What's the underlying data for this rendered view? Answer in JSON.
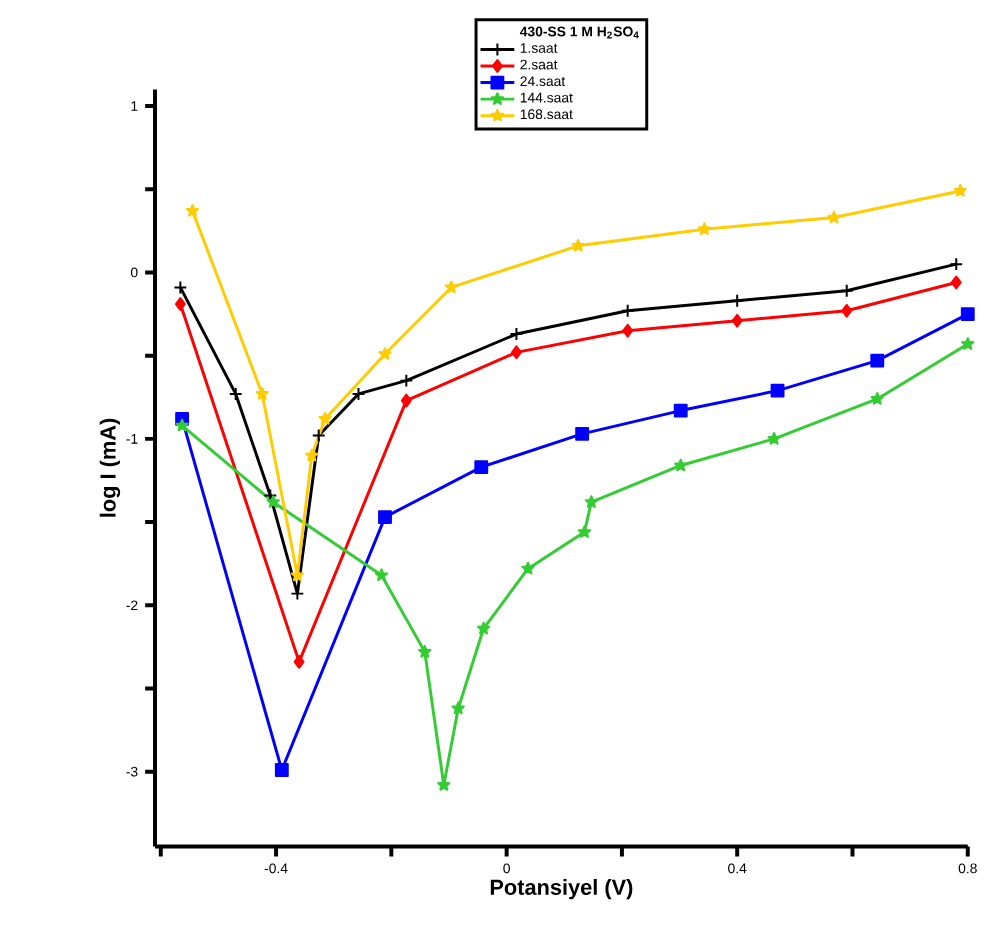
{
  "chart_data": {
    "type": "line",
    "xlabel": "Potansiyel (V)",
    "ylabel": "log I (mA)",
    "legend_title": "430-SS 1 M H$_{2}$SO$_{4}$",
    "legend": "top",
    "grid": false,
    "line_style": "solid",
    "xlim": [
      -0.61,
      0.8
    ],
    "ylim": [
      -3.45,
      1.1
    ],
    "xticks": [
      {
        "value": -0.6,
        "label": null
      },
      -0.4,
      {
        "value": -0.2,
        "label": null
      },
      0,
      {
        "value": 0.2,
        "label": null
      },
      0.4,
      {
        "value": 0.6,
        "label": null
      },
      0.8
    ],
    "yticks": [
      -3,
      {
        "value": -2.5,
        "label": null
      },
      -2,
      {
        "value": -1.5,
        "label": null
      },
      -1,
      {
        "value": -0.5,
        "label": null
      },
      0,
      {
        "value": 0.5,
        "label": null
      },
      1
    ],
    "series": [
      {
        "name": "1.saat",
        "color": "#000000",
        "marker": "cross",
        "x": [
          -0.566,
          -0.47,
          -0.41,
          -0.363,
          -0.326,
          -0.257,
          -0.174,
          0.017,
          0.21,
          0.4,
          0.59,
          0.78
        ],
        "values": [
          -0.09,
          -0.73,
          -1.34,
          -1.93,
          -0.98,
          -0.73,
          -0.65,
          -0.37,
          -0.23,
          -0.17,
          -0.11,
          0.05
        ]
      },
      {
        "name": "2.saat",
        "color": "#ff0000",
        "marker": "diamond",
        "x": [
          -0.566,
          -0.36,
          -0.174,
          0.017,
          0.21,
          0.4,
          0.59,
          0.78
        ],
        "values": [
          -0.19,
          -2.34,
          -0.77,
          -0.48,
          -0.35,
          -0.29,
          -0.23,
          -0.06
        ]
      },
      {
        "name": "24.saat",
        "color": "#0000ff",
        "marker": "square",
        "x": [
          -0.563,
          -0.39,
          -0.211,
          -0.044,
          0.131,
          0.302,
          0.47,
          0.643,
          0.8
        ],
        "values": [
          -0.88,
          -2.99,
          -1.47,
          -1.17,
          -0.97,
          -0.83,
          -0.71,
          -0.53,
          -0.25
        ]
      },
      {
        "name": "144.saat",
        "color": "#33cc33",
        "marker": "star",
        "x": [
          -0.563,
          -0.405,
          -0.217,
          -0.142,
          -0.109,
          -0.084,
          -0.04,
          0.037,
          0.135,
          0.147,
          0.302,
          0.464,
          0.643,
          0.8
        ],
        "values": [
          -0.92,
          -1.38,
          -1.82,
          -2.28,
          -3.08,
          -2.62,
          -2.14,
          -1.78,
          -1.56,
          -1.38,
          -1.16,
          -1.0,
          -0.76,
          -0.43
        ]
      },
      {
        "name": "168.saat",
        "color": "#ffcc00",
        "marker": "star",
        "x": [
          -0.545,
          -0.424,
          -0.363,
          -0.338,
          -0.315,
          -0.211,
          -0.096,
          0.124,
          0.343,
          0.568,
          0.787
        ],
        "values": [
          0.37,
          -0.73,
          -1.82,
          -1.1,
          -0.88,
          -0.49,
          -0.09,
          0.16,
          0.26,
          0.33,
          0.49
        ]
      }
    ]
  }
}
